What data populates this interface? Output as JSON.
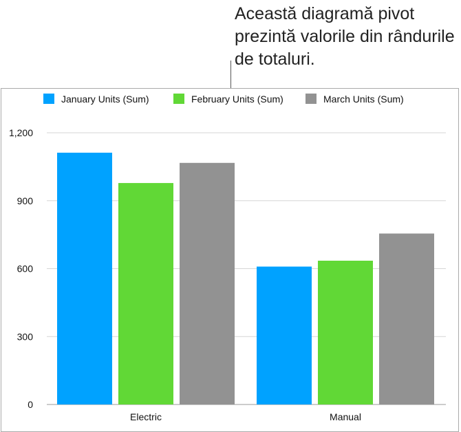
{
  "callout": {
    "text": "Această diagramă pivot prezintă valorile din rândurile de totaluri."
  },
  "chart_data": {
    "type": "bar",
    "categories": [
      "Electric",
      "Manual"
    ],
    "series": [
      {
        "name": "January Units (Sum)",
        "color": "#00a2ff",
        "values": [
          1112,
          609
        ]
      },
      {
        "name": "February Units (Sum)",
        "color": "#61d836",
        "values": [
          978,
          635
        ]
      },
      {
        "name": "March Units (Sum)",
        "color": "#929292",
        "values": [
          1067,
          755
        ]
      }
    ],
    "yticks": [
      "0",
      "300",
      "600",
      "900",
      "1,200"
    ],
    "ylim": [
      0,
      1200
    ],
    "grid": true,
    "legend": "top"
  }
}
